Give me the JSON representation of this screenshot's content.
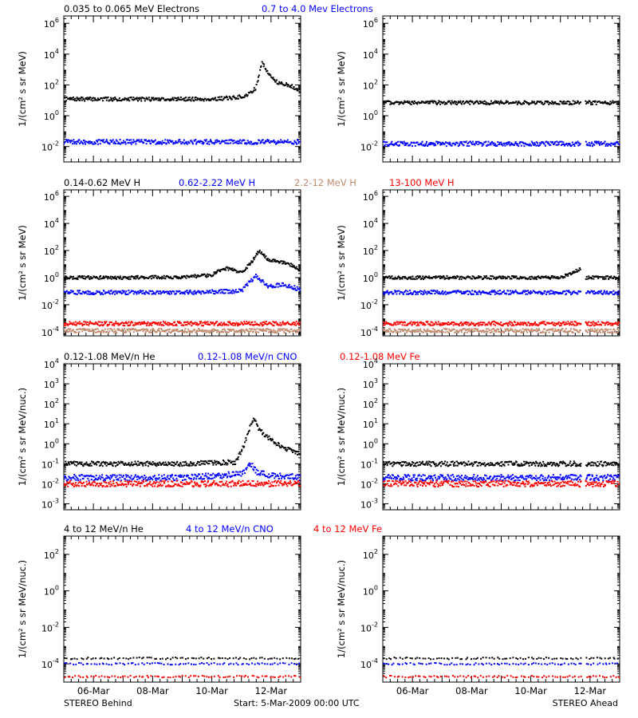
{
  "footer": {
    "left": "STEREO Behind",
    "center": "Start:  5-Mar-2009 00:00 UTC",
    "right": "STEREO Ahead"
  },
  "x_ticks": [
    "06-Mar",
    "08-Mar",
    "10-Mar",
    "12-Mar"
  ],
  "panels": [
    {
      "row": 1,
      "legend": [
        {
          "label": "0.035 to 0.065 MeV Electrons",
          "color": "#000000"
        },
        {
          "label": "0.7 to 4.0 Mev Electrons",
          "color": "#0000ff"
        }
      ],
      "ylabel": "1/(cm² s sr MeV)",
      "y_ticks": [
        {
          "base": "10",
          "exp": "6",
          "value": 1000000.0
        },
        {
          "base": "10",
          "exp": "4",
          "value": 10000.0
        },
        {
          "base": "10",
          "exp": "2",
          "value": 100.0
        },
        {
          "base": "10",
          "exp": "0",
          "value": 1
        },
        {
          "base": "10",
          "exp": "-2",
          "value": 0.01
        }
      ]
    },
    {
      "row": 2,
      "legend": [
        {
          "label": "0.14-0.62 MeV H",
          "color": "#000000"
        },
        {
          "label": "0.62-2.22 MeV H",
          "color": "#0000ff"
        },
        {
          "label": "2.2-12 MeV H",
          "color": "#c08a6e"
        },
        {
          "label": "13-100 MeV H",
          "color": "#ff0000"
        }
      ],
      "ylabel": "1/(cm² s sr MeV)",
      "y_ticks": [
        {
          "base": "10",
          "exp": "6",
          "value": 1000000.0
        },
        {
          "base": "10",
          "exp": "4",
          "value": 10000.0
        },
        {
          "base": "10",
          "exp": "2",
          "value": 100.0
        },
        {
          "base": "10",
          "exp": "0",
          "value": 1
        },
        {
          "base": "10",
          "exp": "-2",
          "value": 0.01
        },
        {
          "base": "10",
          "exp": "-4",
          "value": 0.0001
        }
      ]
    },
    {
      "row": 3,
      "legend": [
        {
          "label": "0.12-1.08 MeV/n He",
          "color": "#000000"
        },
        {
          "label": "0.12-1.08 MeV/n CNO",
          "color": "#0000ff"
        },
        {
          "label": "0.12-1.08 MeV Fe",
          "color": "#ff0000"
        }
      ],
      "ylabel": "1/(cm² s sr MeV/nuc.)",
      "y_ticks": [
        {
          "base": "10",
          "exp": "4",
          "value": 10000.0
        },
        {
          "base": "10",
          "exp": "3",
          "value": 1000.0
        },
        {
          "base": "10",
          "exp": "2",
          "value": 100.0
        },
        {
          "base": "10",
          "exp": "1",
          "value": 10
        },
        {
          "base": "10",
          "exp": "0",
          "value": 1
        },
        {
          "base": "10",
          "exp": "-1",
          "value": 0.1
        },
        {
          "base": "10",
          "exp": "-2",
          "value": 0.01
        },
        {
          "base": "10",
          "exp": "-3",
          "value": 0.001
        }
      ]
    },
    {
      "row": 4,
      "legend": [
        {
          "label": "4 to 12 MeV/n He",
          "color": "#000000"
        },
        {
          "label": "4 to 12 MeV/n CNO",
          "color": "#0000ff"
        },
        {
          "label": "4 to 12 MeV Fe",
          "color": "#ff0000"
        }
      ],
      "ylabel": "1/(cm² s sr MeV/nuc.)",
      "y_ticks": [
        {
          "base": "10",
          "exp": "2",
          "value": 100.0
        },
        {
          "base": "10",
          "exp": "0",
          "value": 1
        },
        {
          "base": "10",
          "exp": "-2",
          "value": 0.01
        },
        {
          "base": "10",
          "exp": "-4",
          "value": 0.0001
        }
      ]
    }
  ],
  "chart_data": [
    {
      "type": "scatter",
      "id": "behind-electrons",
      "spacecraft": "STEREO Behind",
      "yscale": "log",
      "ylim": [
        0.001,
        3000000.0
      ],
      "xlim": [
        0,
        8
      ],
      "series": [
        {
          "name": "0.035 to 0.065 MeV Electrons",
          "color": "#000000",
          "x": [
            0,
            1,
            2,
            3,
            4,
            5,
            5.8,
            6.2,
            6.5,
            6.7,
            7,
            7.3,
            7.6,
            8
          ],
          "y": [
            12,
            12,
            12,
            12,
            12,
            12,
            15,
            20,
            70,
            3000,
            300,
            120,
            100,
            40
          ]
        },
        {
          "name": "0.7 to 4.0 Mev Electrons",
          "color": "#0000ff",
          "x": [
            0,
            2,
            4,
            6,
            8
          ],
          "y": [
            0.02,
            0.02,
            0.02,
            0.02,
            0.02
          ]
        }
      ]
    },
    {
      "type": "scatter",
      "id": "ahead-electrons",
      "spacecraft": "STEREO Ahead",
      "yscale": "log",
      "ylim": [
        0.001,
        3000000.0
      ],
      "xlim": [
        0,
        8
      ],
      "series": [
        {
          "name": "0.035 to 0.065 MeV Electrons",
          "color": "#000000",
          "x": [
            0,
            2,
            4,
            6,
            6.7,
            6.8,
            8
          ],
          "y": [
            7,
            7,
            7,
            7,
            7,
            7,
            7
          ]
        },
        {
          "name": "0.7 to 4.0 Mev Electrons",
          "color": "#0000ff",
          "x": [
            0,
            2,
            4,
            6,
            6.7,
            6.8,
            8
          ],
          "y": [
            0.015,
            0.015,
            0.015,
            0.015,
            0.015,
            0.015,
            0.015
          ]
        }
      ]
    },
    {
      "type": "scatter",
      "id": "behind-protons",
      "spacecraft": "STEREO Behind",
      "yscale": "log",
      "ylim": [
        5e-05,
        3000000.0
      ],
      "xlim": [
        0,
        8
      ],
      "series": [
        {
          "name": "0.14-0.62 MeV H",
          "color": "#000000",
          "x": [
            0,
            2,
            4,
            5,
            5.2,
            5.5,
            6,
            6.3,
            6.6,
            6.9,
            7.3,
            7.6,
            8
          ],
          "y": [
            1,
            1,
            1.1,
            1.5,
            3,
            5,
            2.5,
            10,
            100,
            20,
            15,
            10,
            4
          ]
        },
        {
          "name": "0.62-2.22 MeV H",
          "color": "#0000ff",
          "x": [
            0,
            2,
            4,
            6,
            6.2,
            6.5,
            6.9,
            7.3,
            7.6,
            8
          ],
          "y": [
            0.08,
            0.08,
            0.08,
            0.1,
            0.3,
            1.5,
            0.2,
            0.3,
            0.25,
            0.12
          ]
        },
        {
          "name": "2.2-12 MeV H",
          "color": "#c08a6e",
          "x": [
            0,
            2,
            4,
            6,
            8
          ],
          "y": [
            0.00012,
            0.00012,
            0.00012,
            0.00012,
            0.00012
          ]
        },
        {
          "name": "13-100 MeV H",
          "color": "#ff0000",
          "x": [
            0,
            2,
            4,
            6,
            8
          ],
          "y": [
            0.0004,
            0.0004,
            0.0004,
            0.0004,
            0.0004
          ]
        }
      ]
    },
    {
      "type": "scatter",
      "id": "ahead-protons",
      "spacecraft": "STEREO Ahead",
      "yscale": "log",
      "ylim": [
        5e-05,
        3000000.0
      ],
      "xlim": [
        0,
        8
      ],
      "series": [
        {
          "name": "0.14-0.62 MeV H",
          "color": "#000000",
          "x": [
            0,
            2,
            4,
            6,
            6.65,
            6.8,
            8
          ],
          "y": [
            1,
            1,
            1,
            1,
            4,
            1,
            1
          ]
        },
        {
          "name": "0.62-2.22 MeV H",
          "color": "#0000ff",
          "x": [
            0,
            2,
            4,
            6,
            6.7,
            6.8,
            8
          ],
          "y": [
            0.08,
            0.08,
            0.08,
            0.08,
            0.08,
            0.08,
            0.08
          ]
        },
        {
          "name": "2.2-12 MeV H",
          "color": "#c08a6e",
          "x": [
            0,
            2,
            4,
            6,
            8
          ],
          "y": [
            0.00012,
            0.00012,
            0.00012,
            0.00012,
            0.00012
          ]
        },
        {
          "name": "13-100 MeV H",
          "color": "#ff0000",
          "x": [
            0,
            2,
            4,
            6,
            8
          ],
          "y": [
            0.0004,
            0.0004,
            0.0004,
            0.0004,
            0.0004
          ]
        }
      ]
    },
    {
      "type": "scatter",
      "id": "behind-heavy-low",
      "spacecraft": "STEREO Behind",
      "yscale": "log",
      "ylim": [
        0.0005,
        10000.0
      ],
      "xlim": [
        0,
        8
      ],
      "series": [
        {
          "name": "0.12-1.08 MeV/n He",
          "color": "#000000",
          "x": [
            0,
            2,
            4,
            5.8,
            6.1,
            6.4,
            6.6,
            6.9,
            7.2,
            7.6,
            8
          ],
          "y": [
            0.1,
            0.1,
            0.1,
            0.12,
            1,
            20,
            5,
            2,
            1,
            0.5,
            0.3
          ]
        },
        {
          "name": "0.12-1.08 MeV/n CNO",
          "color": "#0000ff",
          "x": [
            0,
            2,
            4,
            6,
            6.3,
            6.5,
            6.8,
            8
          ],
          "y": [
            0.02,
            0.02,
            0.02,
            0.03,
            0.1,
            0.04,
            0.03,
            0.02
          ]
        },
        {
          "name": "0.12-1.08 MeV Fe",
          "color": "#ff0000",
          "x": [
            0,
            2,
            4,
            6,
            8
          ],
          "y": [
            0.01,
            0.01,
            0.01,
            0.01,
            0.01
          ]
        }
      ]
    },
    {
      "type": "scatter",
      "id": "ahead-heavy-low",
      "spacecraft": "STEREO Ahead",
      "yscale": "log",
      "ylim": [
        0.0005,
        10000.0
      ],
      "xlim": [
        0,
        8
      ],
      "series": [
        {
          "name": "0.12-1.08 MeV/n He",
          "color": "#000000",
          "x": [
            0,
            2,
            4,
            6,
            6.7,
            6.8,
            8
          ],
          "y": [
            0.1,
            0.1,
            0.1,
            0.1,
            0.1,
            0.1,
            0.1
          ]
        },
        {
          "name": "0.12-1.08 MeV/n CNO",
          "color": "#0000ff",
          "x": [
            0,
            2,
            4,
            6,
            8
          ],
          "y": [
            0.02,
            0.02,
            0.02,
            0.02,
            0.02
          ]
        },
        {
          "name": "0.12-1.08 MeV Fe",
          "color": "#ff0000",
          "x": [
            0,
            2,
            4,
            6,
            8
          ],
          "y": [
            0.01,
            0.01,
            0.01,
            0.01,
            0.01
          ]
        }
      ]
    },
    {
      "type": "scatter",
      "id": "behind-heavy-high",
      "spacecraft": "STEREO Behind",
      "yscale": "log",
      "ylim": [
        1e-05,
        1000
      ],
      "xlim": [
        0,
        8
      ],
      "series": [
        {
          "name": "4 to 12 MeV/n He",
          "color": "#000000",
          "x": [
            0,
            2,
            4,
            6,
            8
          ],
          "y": [
            0.0002,
            0.0002,
            0.0002,
            0.0002,
            0.0002
          ]
        },
        {
          "name": "4 to 12 MeV/n CNO",
          "color": "#0000ff",
          "x": [
            0,
            2,
            4,
            6,
            8
          ],
          "y": [
            0.0001,
            0.0001,
            0.0001,
            0.0001,
            0.0001
          ]
        },
        {
          "name": "4 to 12 MeV Fe",
          "color": "#ff0000",
          "x": [
            0,
            2,
            4,
            6,
            8
          ],
          "y": [
            2e-05,
            2e-05,
            2e-05,
            2e-05,
            2e-05
          ]
        }
      ]
    },
    {
      "type": "scatter",
      "id": "ahead-heavy-high",
      "spacecraft": "STEREO Ahead",
      "yscale": "log",
      "ylim": [
        1e-05,
        1000
      ],
      "xlim": [
        0,
        8
      ],
      "series": [
        {
          "name": "4 to 12 MeV/n He",
          "color": "#000000",
          "x": [
            0,
            2,
            4,
            6,
            8
          ],
          "y": [
            0.0002,
            0.0002,
            0.0002,
            0.0002,
            0.0002
          ]
        },
        {
          "name": "4 to 12 MeV/n CNO",
          "color": "#0000ff",
          "x": [
            0,
            2,
            4,
            6,
            8
          ],
          "y": [
            0.0001,
            0.0001,
            0.0001,
            0.0001,
            0.0001
          ]
        },
        {
          "name": "4 to 12 MeV Fe",
          "color": "#ff0000",
          "x": [
            0,
            2,
            4,
            6,
            8
          ],
          "y": [
            2e-05,
            2e-05,
            2e-05,
            2e-05,
            2e-05
          ]
        }
      ]
    }
  ]
}
